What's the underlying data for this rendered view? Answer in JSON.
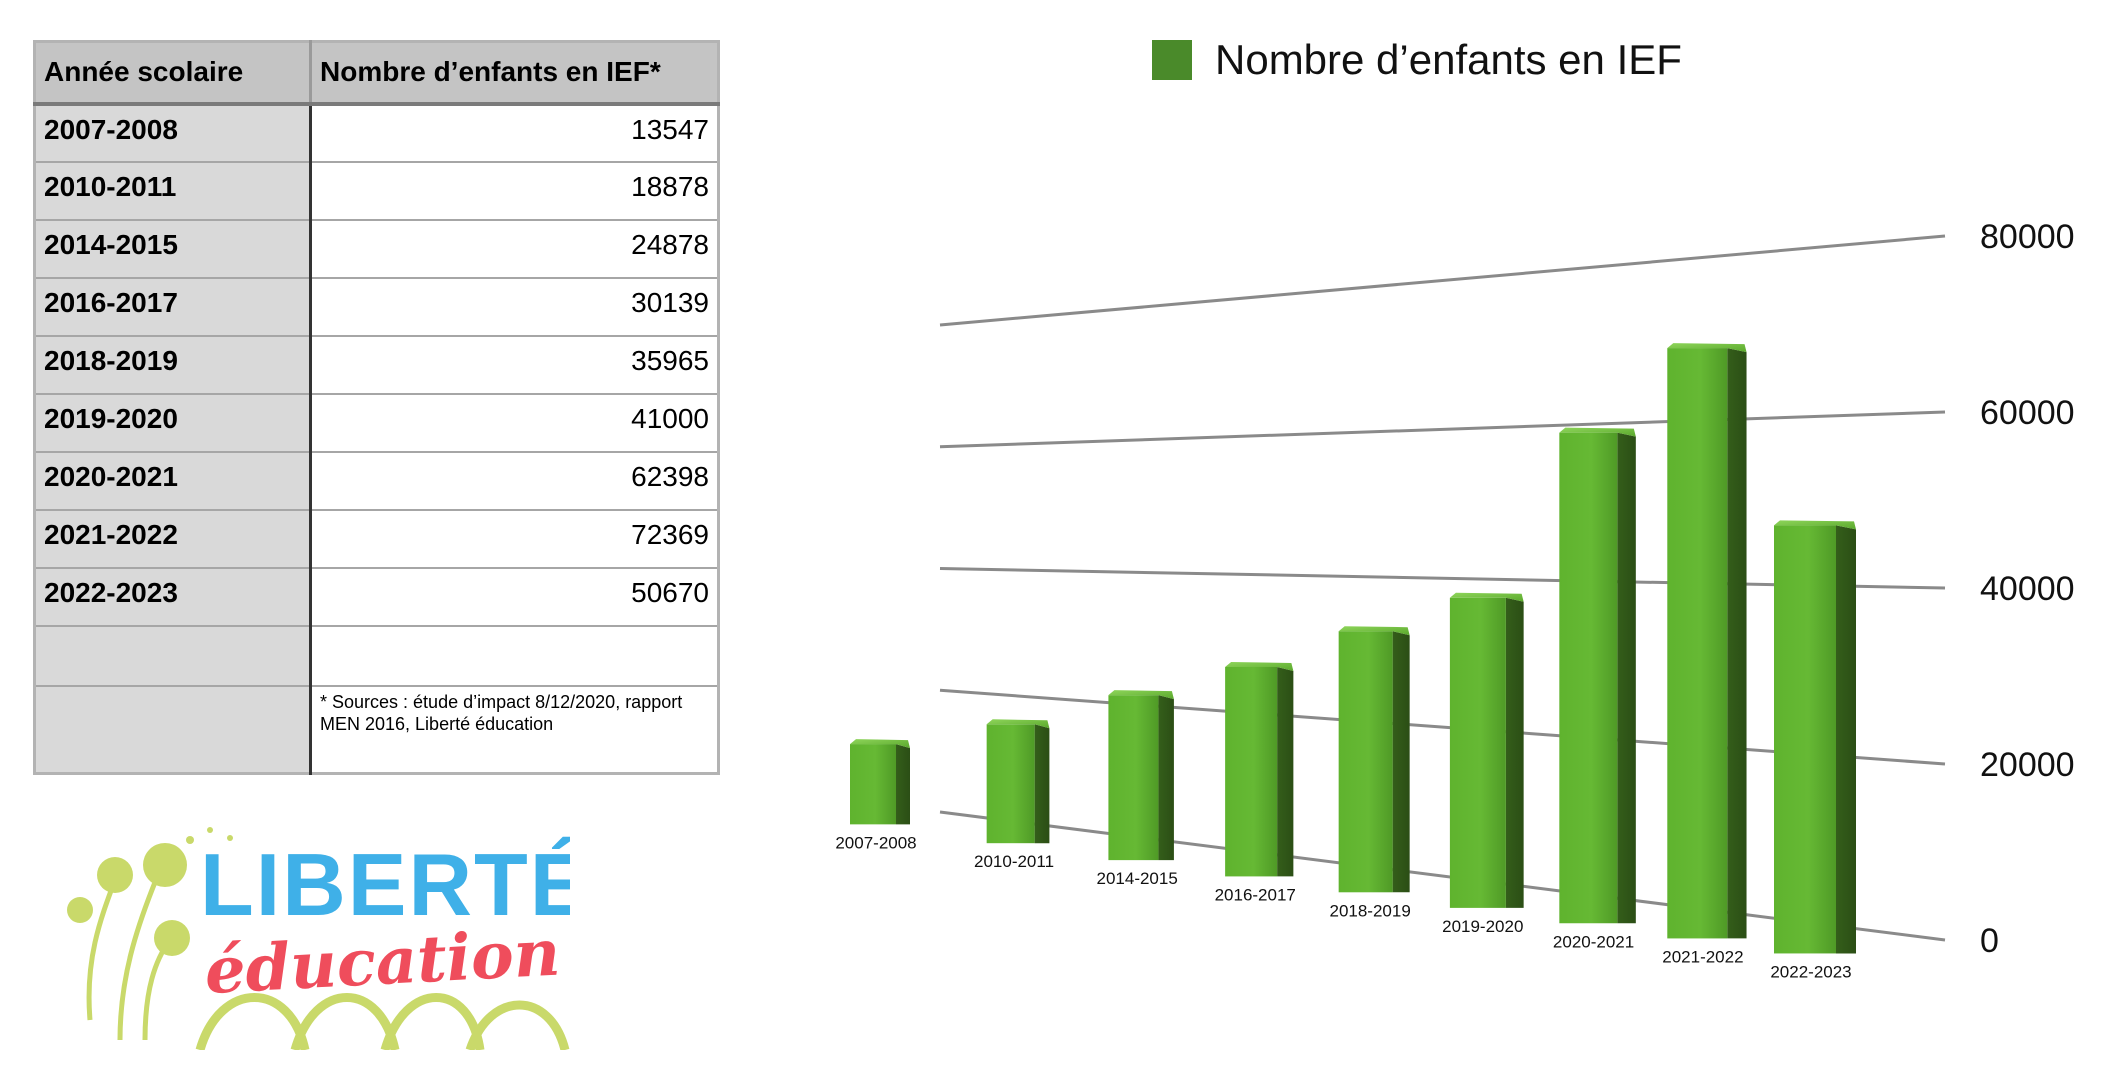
{
  "table": {
    "headers": [
      "Année scolaire",
      "Nombre d’enfants en IEF*"
    ],
    "rows": [
      {
        "year": "2007-2008",
        "value": "13547"
      },
      {
        "year": "2010-2011",
        "value": "18878"
      },
      {
        "year": "2014-2015",
        "value": "24878"
      },
      {
        "year": "2016-2017",
        "value": "30139"
      },
      {
        "year": "2018-2019",
        "value": "35965"
      },
      {
        "year": "2019-2020",
        "value": "41000"
      },
      {
        "year": "2020-2021",
        "value": "62398"
      },
      {
        "year": "2021-2022",
        "value": "72369"
      },
      {
        "year": "2022-2023",
        "value": "50670"
      }
    ],
    "note": "* Sources : étude d’impact 8/12/2020, rapport MEN 2016, Liberté éducation"
  },
  "logo": {
    "line1": "LIBERTÉ",
    "line2": "éducation"
  },
  "chart_data": {
    "type": "bar",
    "legend": "Nombre d’enfants en IEF",
    "legend_position": "top",
    "categories": [
      "2007-2008",
      "2010-2011",
      "2014-2015",
      "2016-2017",
      "2018-2019",
      "2019-2020",
      "2020-2021",
      "2021-2022",
      "2022-2023"
    ],
    "series": [
      {
        "name": "Nombre d’enfants en IEF",
        "values": [
          13547,
          18878,
          24878,
          30139,
          35965,
          41000,
          62398,
          72369,
          50670
        ],
        "color": "#5aa82c"
      }
    ],
    "yticks": [
      "0",
      "20000",
      "40000",
      "60000",
      "80000"
    ],
    "ylim": [
      0,
      80000
    ],
    "grid": true,
    "perspective": "3d"
  }
}
